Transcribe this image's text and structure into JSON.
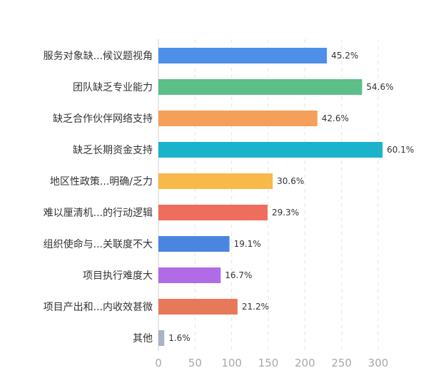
{
  "chart_data": {
    "type": "bar",
    "orientation": "horizontal",
    "categories": [
      "服务对象缺...候议题视角",
      "团队缺乏专业能力",
      "缺乏合作伙伴网络支持",
      "缺乏长期资金支持",
      "地区性政策...明确/乏力",
      "难以厘清机...的行动逻辑",
      "组织使命与...关联度不大",
      "项目执行难度大",
      "项目产出和...内收效甚微",
      "其他"
    ],
    "values": [
      230,
      278,
      217,
      306,
      156,
      149,
      97,
      85,
      108,
      8
    ],
    "data_labels": [
      "45.2%",
      "54.6%",
      "42.6%",
      "60.1%",
      "30.6%",
      "29.3%",
      "19.1%",
      "16.7%",
      "21.2%",
      "1.6%"
    ],
    "colors": [
      "#4e8fe8",
      "#5bbf87",
      "#f5a05a",
      "#1ab3c9",
      "#f6b94a",
      "#ee6d5c",
      "#4a86e0",
      "#b06be6",
      "#e7795a",
      "#a7b4c6"
    ],
    "x_ticks": [
      "0",
      "50",
      "100",
      "150",
      "200",
      "250",
      "300"
    ],
    "xlim": [
      0,
      320
    ],
    "grid": true,
    "legend": "none",
    "title": "",
    "xlabel": "",
    "ylabel": ""
  }
}
